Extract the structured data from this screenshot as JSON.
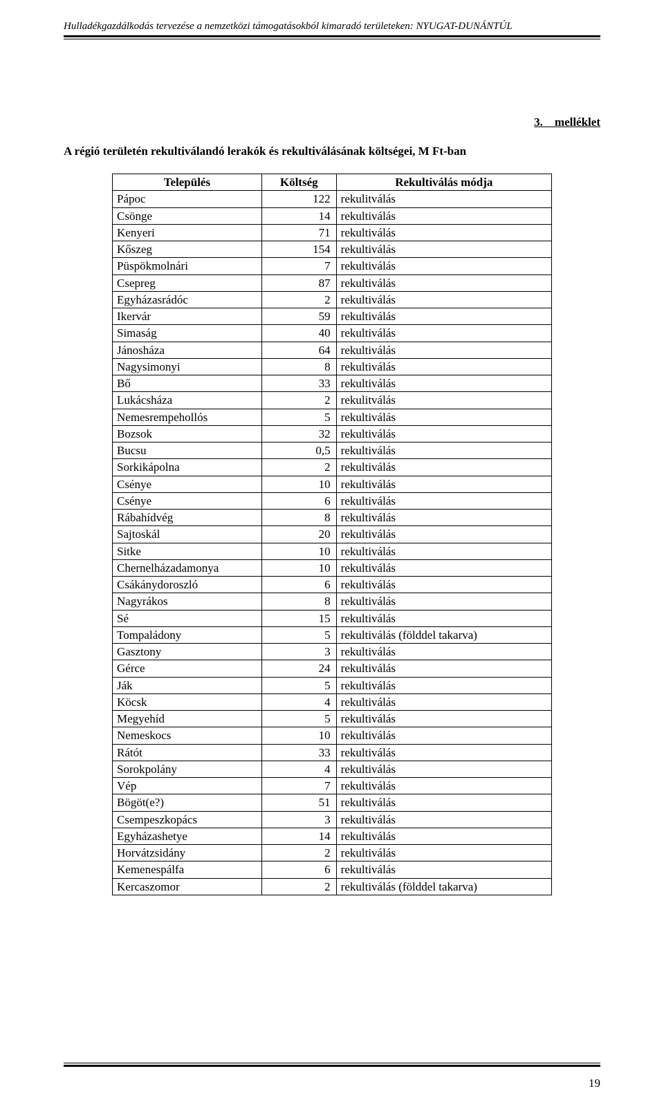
{
  "header": "Hulladékgazdálkodás tervezése a nemzetközi támogatásokból kimaradó területeken: NYUGAT-DUNÁNTÚL",
  "attachment": "3.    melléklet",
  "title": "A régió területén rekultiválandó lerakók és rekultiválásának költségei, M Ft-ban",
  "columns": {
    "name": "Település",
    "cost": "Költség",
    "method": "Rekultiválás módja"
  },
  "rows": [
    {
      "name": "Pápoc",
      "cost": "122",
      "method": "rekulitválás"
    },
    {
      "name": "Csönge",
      "cost": "14",
      "method": "rekultiválás"
    },
    {
      "name": "Kenyeri",
      "cost": "71",
      "method": "rekultiválás"
    },
    {
      "name": "Kőszeg",
      "cost": "154",
      "method": "rekultiválás"
    },
    {
      "name": "Püspökmolnári",
      "cost": "7",
      "method": "rekultiválás"
    },
    {
      "name": "Csepreg",
      "cost": "87",
      "method": "rekultiválás"
    },
    {
      "name": "Egyházasrádóc",
      "cost": "2",
      "method": "rekultiválás"
    },
    {
      "name": "Ikervár",
      "cost": "59",
      "method": "rekultiválás"
    },
    {
      "name": "Simaság",
      "cost": "40",
      "method": "rekultiválás"
    },
    {
      "name": "Jánosháza",
      "cost": "64",
      "method": "rekultiválás"
    },
    {
      "name": "Nagysimonyi",
      "cost": "8",
      "method": "rekultiválás"
    },
    {
      "name": "Bő",
      "cost": "33",
      "method": "rekultiválás"
    },
    {
      "name": "Lukácsháza",
      "cost": "2",
      "method": "rekulitválás"
    },
    {
      "name": "Nemesrempehollós",
      "cost": "5",
      "method": "rekultiválás"
    },
    {
      "name": "Bozsok",
      "cost": "32",
      "method": "rekultiválás"
    },
    {
      "name": "Bucsu",
      "cost": "0,5",
      "method": "rekultiválás"
    },
    {
      "name": "Sorkikápolna",
      "cost": "2",
      "method": "rekultiválás"
    },
    {
      "name": "Csénye",
      "cost": "10",
      "method": "rekultiválás"
    },
    {
      "name": "Csénye",
      "cost": "6",
      "method": "rekultiválás"
    },
    {
      "name": "Rábahídvég",
      "cost": "8",
      "method": "rekultiválás"
    },
    {
      "name": "Sajtoskál",
      "cost": "20",
      "method": "rekultiválás"
    },
    {
      "name": "Sitke",
      "cost": "10",
      "method": "rekultiválás"
    },
    {
      "name": "Chernelházadamonya",
      "cost": "10",
      "method": "rekultiválás"
    },
    {
      "name": "Csákánydoroszló",
      "cost": "6",
      "method": "rekultiválás"
    },
    {
      "name": "Nagyrákos",
      "cost": "8",
      "method": "rekultiválás"
    },
    {
      "name": "Sé",
      "cost": "15",
      "method": "rekultiválás"
    },
    {
      "name": "Tompaládony",
      "cost": "5",
      "method": "rekultiválás (földdel takarva)"
    },
    {
      "name": "Gasztony",
      "cost": "3",
      "method": "rekultiválás"
    },
    {
      "name": "Gérce",
      "cost": "24",
      "method": "rekultiválás"
    },
    {
      "name": "Ják",
      "cost": "5",
      "method": "rekultiválás"
    },
    {
      "name": "Köcsk",
      "cost": "4",
      "method": "rekultiválás"
    },
    {
      "name": "Megyehíd",
      "cost": "5",
      "method": "rekultiválás"
    },
    {
      "name": "Nemeskocs",
      "cost": "10",
      "method": "rekultiválás"
    },
    {
      "name": "Rátót",
      "cost": "33",
      "method": "rekultiválás"
    },
    {
      "name": "Sorokpolány",
      "cost": "4",
      "method": "rekultiválás"
    },
    {
      "name": "Vép",
      "cost": "7",
      "method": "rekultiválás"
    },
    {
      "name": "Bögöt(e?)",
      "cost": "51",
      "method": "rekultiválás"
    },
    {
      "name": "Csempeszkopács",
      "cost": "3",
      "method": "rekultiválás"
    },
    {
      "name": "Egyházashetye",
      "cost": "14",
      "method": "rekultiválás"
    },
    {
      "name": "Horvátzsidány",
      "cost": "2",
      "method": "rekultiválás"
    },
    {
      "name": "Kemenespálfa",
      "cost": "6",
      "method": "rekultiválás"
    },
    {
      "name": "Kercaszomor",
      "cost": "2",
      "method": "rekultiválás (földdel takarva)"
    }
  ],
  "pageNumber": "19"
}
